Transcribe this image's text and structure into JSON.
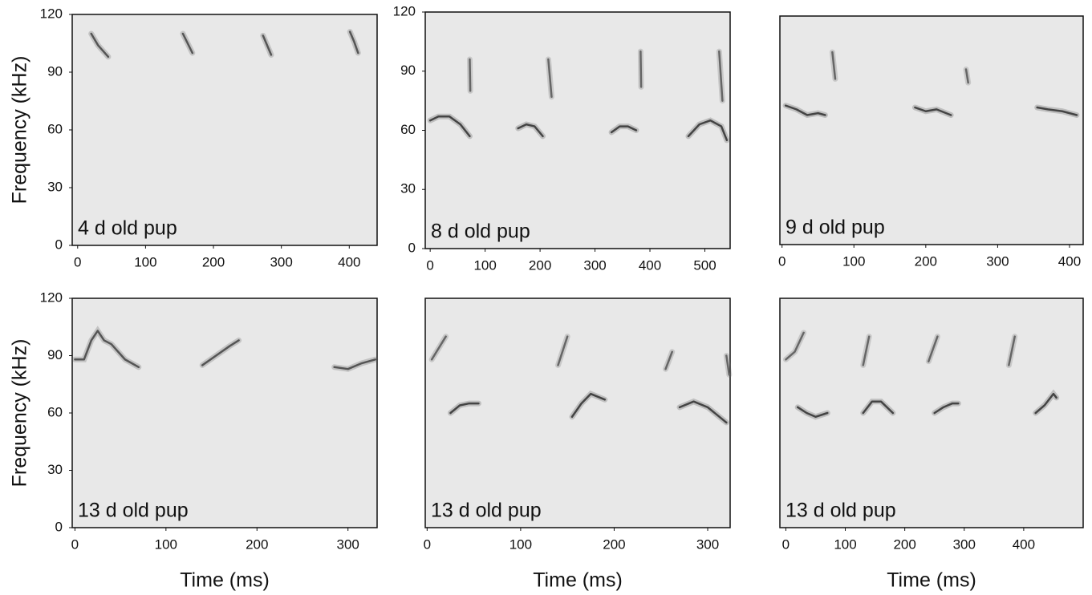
{
  "chart_data": [
    {
      "type": "spectrogram",
      "annotation": "4 d old pup",
      "ylabel": "Frequency (kHz)",
      "xlim": [
        -8,
        441
      ],
      "xticks": [
        0,
        100,
        200,
        300,
        400
      ],
      "ylim": [
        0,
        120
      ],
      "yticks": [
        0,
        30,
        60,
        90,
        120
      ],
      "series": [
        {
          "color": "#555555",
          "x": [
            20,
            30,
            45
          ],
          "values": [
            110,
            104,
            98
          ]
        },
        {
          "color": "#555555",
          "x": [
            155,
            162,
            169
          ],
          "values": [
            110,
            105,
            100
          ]
        },
        {
          "color": "#555555",
          "x": [
            273,
            279,
            285
          ],
          "values": [
            109,
            104,
            99
          ]
        },
        {
          "color": "#555555",
          "x": [
            401,
            407,
            413
          ],
          "values": [
            111,
            106,
            100
          ]
        }
      ]
    },
    {
      "type": "spectrogram",
      "annotation": "8 d old pup",
      "xlim": [
        -9,
        546
      ],
      "xticks": [
        0,
        100,
        200,
        300,
        400,
        500
      ],
      "ylim": [
        0,
        120
      ],
      "yticks": [
        0,
        30,
        60,
        90,
        120
      ],
      "series": [
        {
          "color": "#444444",
          "x": [
            0,
            15,
            35,
            55,
            72
          ],
          "values": [
            65,
            67,
            67,
            63,
            57
          ]
        },
        {
          "color": "#444444",
          "x": [
            160,
            175,
            190,
            205
          ],
          "values": [
            61,
            63,
            62,
            57
          ]
        },
        {
          "color": "#444444",
          "x": [
            330,
            345,
            360,
            375
          ],
          "values": [
            59,
            62,
            62,
            60
          ]
        },
        {
          "color": "#444444",
          "x": [
            470,
            490,
            510,
            530,
            540
          ],
          "values": [
            57,
            63,
            65,
            62,
            55
          ]
        },
        {
          "color": "#666666",
          "x": [
            72,
            73
          ],
          "values": [
            96,
            80
          ]
        },
        {
          "color": "#666666",
          "x": [
            215,
            221
          ],
          "values": [
            96,
            77
          ]
        },
        {
          "color": "#666666",
          "x": [
            383,
            384
          ],
          "values": [
            100,
            82
          ]
        },
        {
          "color": "#666666",
          "x": [
            526,
            532
          ],
          "values": [
            100,
            75
          ]
        }
      ]
    },
    {
      "type": "spectrogram",
      "annotation": "9 d old pup",
      "xlim": [
        -3,
        419
      ],
      "xticks": [
        0,
        100,
        200,
        300,
        400
      ],
      "ylim": [
        0,
        120
      ],
      "series": [
        {
          "color": "#444444",
          "x": [
            5,
            20,
            35,
            50,
            60
          ],
          "values": [
            73,
            71,
            68,
            69,
            68
          ]
        },
        {
          "color": "#444444",
          "x": [
            185,
            200,
            215,
            235
          ],
          "values": [
            72,
            70,
            71,
            68
          ]
        },
        {
          "color": "#444444",
          "x": [
            355,
            370,
            390,
            410
          ],
          "values": [
            72,
            71,
            70,
            68
          ]
        },
        {
          "color": "#666666",
          "x": [
            70,
            74
          ],
          "values": [
            101,
            87
          ]
        },
        {
          "color": "#666666",
          "x": [
            256,
            259
          ],
          "values": [
            92,
            85
          ]
        }
      ]
    },
    {
      "type": "spectrogram",
      "annotation": "13 d old pup",
      "ylabel": "Frequency (kHz)",
      "xlabel": "Time (ms)",
      "xlim": [
        -3,
        332
      ],
      "xticks": [
        0,
        100,
        200,
        300
      ],
      "ylim": [
        0,
        120
      ],
      "yticks": [
        0,
        30,
        60,
        90,
        120
      ],
      "series": [
        {
          "color": "#555555",
          "x": [
            0,
            10,
            18,
            25,
            32,
            40,
            55,
            70
          ],
          "values": [
            88,
            88,
            98,
            103,
            98,
            96,
            88,
            84
          ]
        },
        {
          "color": "#555555",
          "x": [
            140,
            155,
            170,
            180
          ],
          "values": [
            85,
            90,
            95,
            98
          ]
        },
        {
          "color": "#555555",
          "x": [
            285,
            300,
            315,
            330
          ],
          "values": [
            84,
            83,
            86,
            88
          ]
        }
      ]
    },
    {
      "type": "spectrogram",
      "annotation": "13 d old pup",
      "xlabel": "Time (ms)",
      "xlim": [
        -2,
        324
      ],
      "xticks": [
        0,
        100,
        200,
        300
      ],
      "ylim": [
        0,
        120
      ],
      "series": [
        {
          "color": "#666666",
          "x": [
            5,
            20
          ],
          "values": [
            88,
            100
          ]
        },
        {
          "color": "#666666",
          "x": [
            140,
            150
          ],
          "values": [
            85,
            100
          ]
        },
        {
          "color": "#666666",
          "x": [
            255,
            262
          ],
          "values": [
            83,
            92
          ]
        },
        {
          "color": "#666666",
          "x": [
            320,
            323
          ],
          "values": [
            90,
            80
          ]
        },
        {
          "color": "#444444",
          "x": [
            25,
            35,
            45,
            55
          ],
          "values": [
            60,
            64,
            65,
            65
          ]
        },
        {
          "color": "#444444",
          "x": [
            155,
            165,
            175,
            190
          ],
          "values": [
            58,
            65,
            70,
            67
          ]
        },
        {
          "color": "#444444",
          "x": [
            270,
            285,
            300,
            320
          ],
          "values": [
            63,
            66,
            63,
            55
          ]
        }
      ]
    },
    {
      "type": "spectrogram",
      "annotation": "13 d old pup",
      "xlabel": "Time (ms)",
      "xlim": [
        -10,
        500
      ],
      "xticks": [
        0,
        100,
        200,
        300,
        400
      ],
      "ylim": [
        0,
        120
      ],
      "series": [
        {
          "color": "#666666",
          "x": [
            0,
            15,
            30
          ],
          "values": [
            88,
            92,
            102
          ]
        },
        {
          "color": "#666666",
          "x": [
            130,
            140
          ],
          "values": [
            85,
            100
          ]
        },
        {
          "color": "#666666",
          "x": [
            240,
            255
          ],
          "values": [
            87,
            100
          ]
        },
        {
          "color": "#666666",
          "x": [
            375,
            385
          ],
          "values": [
            85,
            100
          ]
        },
        {
          "color": "#444444",
          "x": [
            20,
            35,
            50,
            70
          ],
          "values": [
            63,
            60,
            58,
            60
          ]
        },
        {
          "color": "#444444",
          "x": [
            130,
            145,
            160,
            180
          ],
          "values": [
            60,
            66,
            66,
            60
          ]
        },
        {
          "color": "#444444",
          "x": [
            250,
            265,
            280,
            290
          ],
          "values": [
            60,
            63,
            65,
            65
          ]
        },
        {
          "color": "#444444",
          "x": [
            420,
            435,
            450,
            455
          ],
          "values": [
            60,
            64,
            70,
            68
          ]
        }
      ]
    }
  ]
}
